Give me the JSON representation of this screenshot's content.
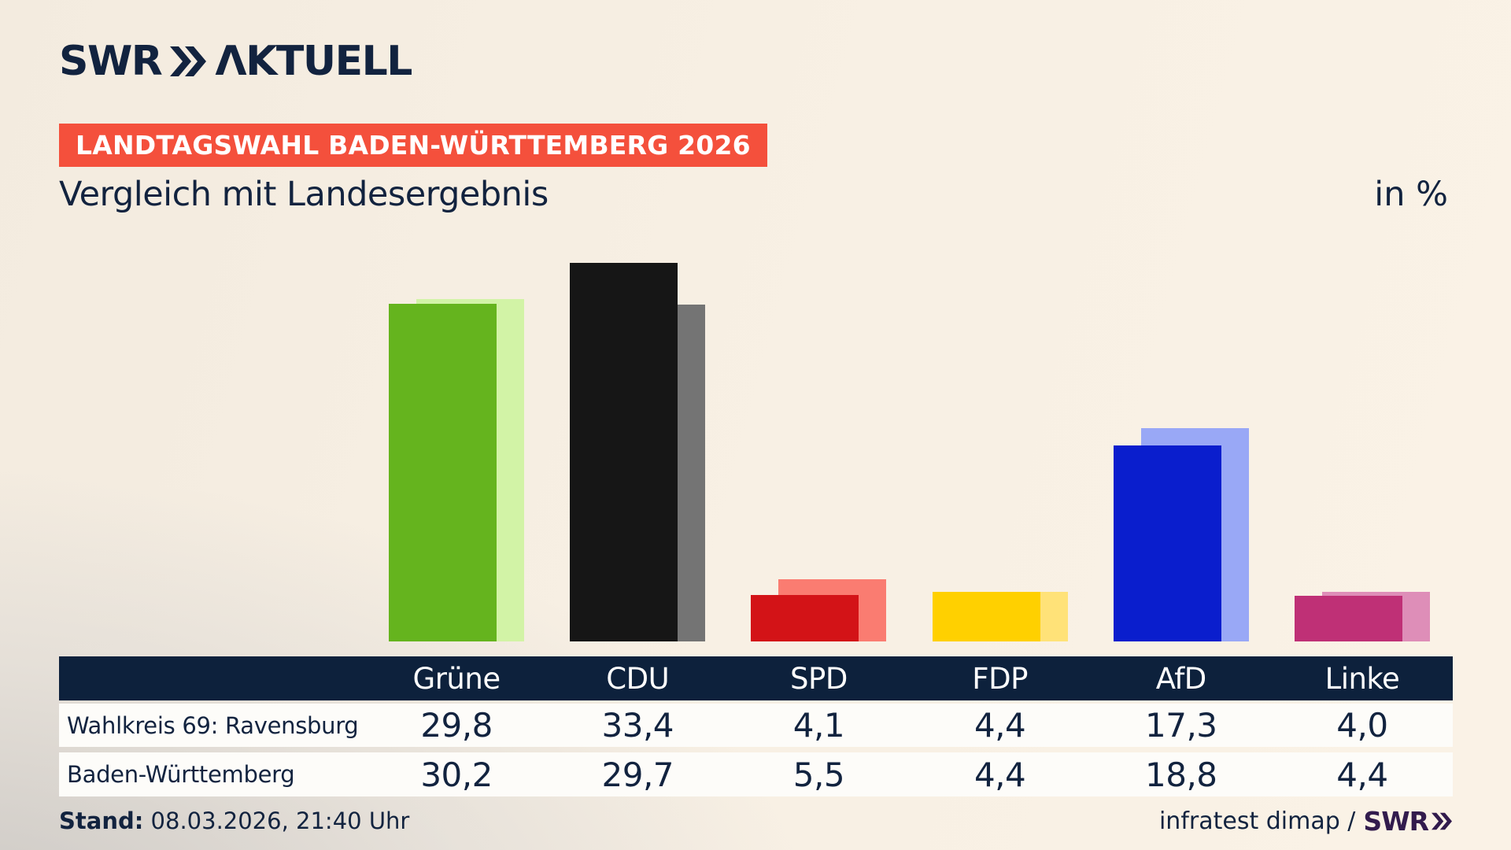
{
  "header": {
    "logo_brand": "SWR",
    "logo_product": "ΛKTUELL",
    "badge": "LANDTAGSWAHL BADEN-WÜRTTEMBERG 2026",
    "title": "Vergleich mit Landesergebnis",
    "unit_label": "in %"
  },
  "chart_data": {
    "type": "bar",
    "title": "Vergleich mit Landesergebnis",
    "unit": "%",
    "categories": [
      "Grüne",
      "CDU",
      "SPD",
      "FDP",
      "AfD",
      "Linke"
    ],
    "series": [
      {
        "name": "Wahlkreis 69: Ravensburg",
        "role": "district-foreground-bar",
        "values": [
          29.8,
          33.4,
          4.1,
          4.4,
          17.3,
          4.0
        ],
        "display": [
          "29,8",
          "33,4",
          "4,1",
          "4,4",
          "17,3",
          "4,0"
        ]
      },
      {
        "name": "Baden-Württemberg",
        "role": "state-background-bar",
        "values": [
          30.2,
          29.7,
          5.5,
          4.4,
          18.8,
          4.4
        ],
        "display": [
          "30,2",
          "29,7",
          "5,5",
          "4,4",
          "18,8",
          "4,4"
        ]
      }
    ],
    "bar_colors_foreground": [
      "#65b41e",
      "#161616",
      "#d31317",
      "#ffd000",
      "#0a1ecd",
      "#bf3076"
    ],
    "bar_colors_background": [
      "#d2f3a6",
      "#747474",
      "#fa7c71",
      "#ffe278",
      "#99a8f6",
      "#de8eb8"
    ],
    "ylim": [
      0,
      34
    ],
    "grid": false,
    "legend": "table-below-chart"
  },
  "footer": {
    "stand_label": "Stand:",
    "stand_value": " 08.03.2026, 21:40 Uhr",
    "source_text": "infratest dimap /",
    "source_brand": "SWR"
  },
  "colors": {
    "navy": "#12233f",
    "table_header_bg": "#0d213c",
    "badge_red": "#f4503c",
    "row_bg": "#fdfcf9",
    "footer_brand_purple": "#321b4d",
    "background_cream": "#f8f0e4",
    "background_gray": "#d4d1ce"
  }
}
